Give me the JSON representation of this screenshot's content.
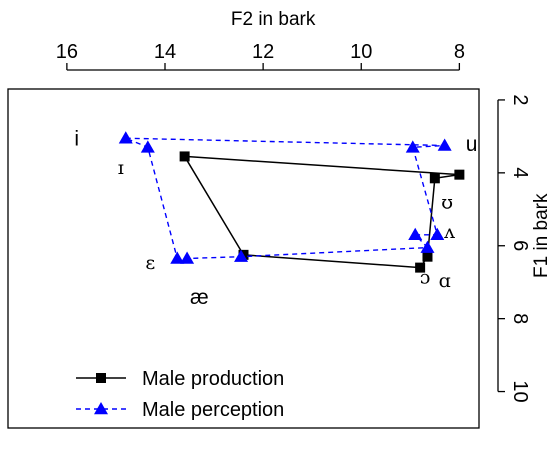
{
  "chart_data": {
    "type": "scatter",
    "title": "",
    "xlabel": "F2 in bark",
    "ylabel": "F1 in bark",
    "x_axis_position": "top",
    "y_axis_position": "right",
    "x_reversed": true,
    "y_reversed": true,
    "xlim": [
      17.2,
      7.6
    ],
    "ylim": [
      1.7,
      11.0
    ],
    "x_ticks": [
      16,
      14,
      12,
      10,
      8
    ],
    "y_ticks": [
      2,
      4,
      6,
      8,
      10
    ],
    "grid": false,
    "legend_position": "bottom-left",
    "series": [
      {
        "name": "Male production",
        "marker": "square",
        "line": "solid",
        "color": "#000000",
        "points": [
          {
            "x": 13.6,
            "y": 3.55
          },
          {
            "x": 8.0,
            "y": 4.05
          },
          {
            "x": 8.5,
            "y": 4.15
          },
          {
            "x": 8.65,
            "y": 6.3
          },
          {
            "x": 8.8,
            "y": 6.6
          },
          {
            "x": 12.4,
            "y": 6.25
          }
        ]
      },
      {
        "name": "Male perception",
        "marker": "triangle",
        "line": "dashed",
        "color": "#0000ff",
        "points": [
          {
            "x": 14.8,
            "y": 3.05
          },
          {
            "x": 8.3,
            "y": 3.25
          },
          {
            "x": 8.95,
            "y": 3.3
          },
          {
            "x": 8.45,
            "y": 5.7
          },
          {
            "x": 8.9,
            "y": 5.7
          },
          {
            "x": 8.65,
            "y": 6.05
          },
          {
            "x": 12.45,
            "y": 6.3
          },
          {
            "x": 13.55,
            "y": 6.35
          },
          {
            "x": 13.75,
            "y": 6.35
          },
          {
            "x": 14.35,
            "y": 3.3
          }
        ]
      }
    ],
    "vowel_labels": [
      {
        "text": "i",
        "x": 15.8,
        "y": 3.05,
        "style": "sans"
      },
      {
        "text": "ɪ",
        "x": 14.9,
        "y": 3.85,
        "style": "serif"
      },
      {
        "text": "u",
        "x": 7.75,
        "y": 3.2,
        "style": "sans"
      },
      {
        "text": "ʊ",
        "x": 8.25,
        "y": 4.8,
        "style": "serif"
      },
      {
        "text": "ʌ",
        "x": 8.2,
        "y": 5.6,
        "style": "serif"
      },
      {
        "text": "ɔ",
        "x": 8.7,
        "y": 6.85,
        "style": "serif"
      },
      {
        "text": "ɑ",
        "x": 8.3,
        "y": 6.95,
        "style": "serif"
      },
      {
        "text": "ɛ",
        "x": 14.3,
        "y": 6.45,
        "style": "serif"
      },
      {
        "text": "æ",
        "x": 13.3,
        "y": 7.4,
        "style": "sans"
      }
    ]
  }
}
